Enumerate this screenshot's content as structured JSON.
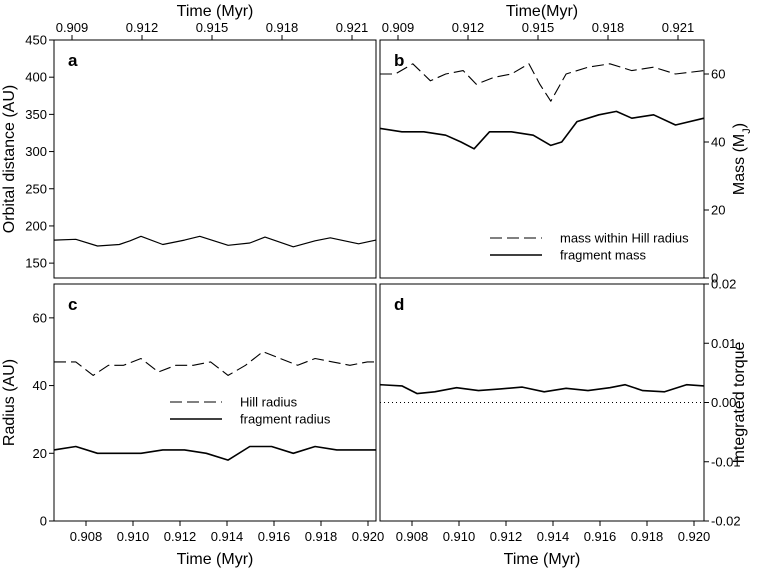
{
  "chart_data": [
    {
      "panel": "a",
      "type": "line",
      "top_axis_label": "Time (Myr)",
      "top_ticks": [
        "0.909",
        "0.912",
        "0.915",
        "0.918",
        "0.921"
      ],
      "ylabel": "Orbital distance (AU)",
      "ylim": [
        130,
        450
      ],
      "yticks": [
        150,
        200,
        250,
        300,
        350,
        400,
        450
      ],
      "xlim": [
        0.907,
        0.9218
      ],
      "series": [
        {
          "style": "solid-thin",
          "x": [
            0.907,
            0.908,
            0.909,
            0.91,
            0.9105,
            0.911,
            0.912,
            0.913,
            0.9137,
            0.915,
            0.916,
            0.9167,
            0.918,
            0.919,
            0.9197,
            0.921,
            0.9218
          ],
          "y": [
            181,
            182,
            173,
            175,
            180,
            186,
            175,
            181,
            186,
            174,
            177,
            185,
            172,
            180,
            184,
            176,
            181
          ]
        }
      ]
    },
    {
      "panel": "b",
      "type": "line",
      "top_axis_label": "Time(Myr)",
      "top_ticks": [
        "0.909",
        "0.912",
        "0.915",
        "0.918",
        "0.921"
      ],
      "ylabel": "Mass (M",
      "ylabel_sub": "J",
      "ylabel_end": ")",
      "ylim": [
        0,
        70
      ],
      "yticks": [
        0,
        20,
        40,
        60
      ],
      "xlim": [
        0.907,
        0.9218
      ],
      "legend": [
        "mass within Hill radius",
        "fragment mass"
      ],
      "series": [
        {
          "name": "mass within Hill radius",
          "style": "dashed",
          "x": [
            0.907,
            0.9077,
            0.9085,
            0.9093,
            0.91,
            0.9108,
            0.9114,
            0.9122,
            0.913,
            0.9138,
            0.9143,
            0.9148,
            0.9155,
            0.9165,
            0.9175,
            0.9185,
            0.9195,
            0.9205,
            0.9218
          ],
          "y": [
            60,
            60,
            63,
            58,
            60,
            61,
            57,
            59,
            60,
            63,
            57,
            52,
            60,
            62,
            63,
            61,
            62,
            60,
            61
          ]
        },
        {
          "name": "fragment mass",
          "style": "solid",
          "x": [
            0.907,
            0.908,
            0.909,
            0.91,
            0.9107,
            0.9113,
            0.912,
            0.913,
            0.914,
            0.9148,
            0.9153,
            0.916,
            0.917,
            0.9178,
            0.9185,
            0.9195,
            0.9205,
            0.9218
          ],
          "y": [
            44,
            43,
            43,
            42,
            40,
            38,
            43,
            43,
            42,
            39,
            40,
            46,
            48,
            49,
            47,
            48,
            45,
            47
          ]
        }
      ]
    },
    {
      "panel": "c",
      "type": "line",
      "xlabel": "Time (Myr)",
      "xticks": [
        "0.908",
        "0.910",
        "0.912",
        "0.914",
        "0.916",
        "0.918",
        "0.920"
      ],
      "ylabel": "Radius (AU)",
      "ylim": [
        0,
        70
      ],
      "yticks": [
        0,
        20,
        40,
        60
      ],
      "xlim": [
        0.907,
        0.9218
      ],
      "legend": [
        "Hill radius",
        "fragment radius"
      ],
      "series": [
        {
          "name": "Hill radius",
          "style": "dashed",
          "x": [
            0.907,
            0.908,
            0.9088,
            0.9095,
            0.9102,
            0.911,
            0.9118,
            0.9126,
            0.9134,
            0.9142,
            0.915,
            0.9158,
            0.9166,
            0.9174,
            0.9182,
            0.919,
            0.9198,
            0.9206,
            0.9214,
            0.9218
          ],
          "y": [
            47,
            47,
            43,
            46,
            46,
            48,
            44,
            46,
            46,
            47,
            43,
            46,
            50,
            48,
            46,
            48,
            47,
            46,
            47,
            47
          ]
        },
        {
          "name": "fragment radius",
          "style": "solid",
          "x": [
            0.907,
            0.908,
            0.909,
            0.91,
            0.911,
            0.912,
            0.913,
            0.914,
            0.915,
            0.916,
            0.917,
            0.918,
            0.919,
            0.92,
            0.921,
            0.9218
          ],
          "y": [
            21,
            22,
            20,
            20,
            20,
            21,
            21,
            20,
            18,
            22,
            22,
            20,
            22,
            21,
            21,
            21
          ]
        }
      ]
    },
    {
      "panel": "d",
      "type": "line",
      "xlabel": "Time (Myr)",
      "xticks": [
        "0.908",
        "0.910",
        "0.912",
        "0.914",
        "0.916",
        "0.918",
        "0.920"
      ],
      "ylabel": "Integrated torque",
      "ylim": [
        -0.02,
        0.02
      ],
      "yticks": [
        "-0.02",
        "-0.01",
        "0.00",
        "0.01",
        "0.02"
      ],
      "xlim": [
        0.907,
        0.9218
      ],
      "reference_line": 0.0,
      "series": [
        {
          "style": "solid",
          "x": [
            0.907,
            0.908,
            0.9087,
            0.9095,
            0.9105,
            0.9115,
            0.9125,
            0.9135,
            0.9145,
            0.9155,
            0.9165,
            0.9175,
            0.9182,
            0.919,
            0.92,
            0.921,
            0.9218
          ],
          "y": [
            0.003,
            0.0028,
            0.0015,
            0.0018,
            0.0025,
            0.002,
            0.0023,
            0.0026,
            0.0018,
            0.0024,
            0.002,
            0.0025,
            0.003,
            0.002,
            0.0018,
            0.003,
            0.0028
          ]
        }
      ]
    }
  ]
}
